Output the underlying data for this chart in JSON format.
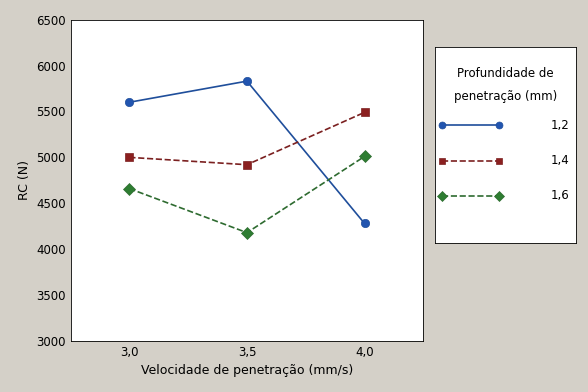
{
  "x_values": [
    3.0,
    3.5,
    4.0
  ],
  "series": [
    {
      "label": "1,2",
      "values": [
        5600,
        5830,
        4280
      ],
      "color": "#1F4E9B",
      "linestyle": "-",
      "marker": "o",
      "markerfacecolor": "#2255B0"
    },
    {
      "label": "1,4",
      "values": [
        5000,
        4920,
        5490
      ],
      "color": "#7B2020",
      "linestyle": "--",
      "marker": "s",
      "markerfacecolor": "#8B2020"
    },
    {
      "label": "1,6",
      "values": [
        4660,
        4180,
        5010
      ],
      "color": "#2E6B30",
      "linestyle": "--",
      "marker": "D",
      "markerfacecolor": "#2E7D32"
    }
  ],
  "xlabel": "Velocidade de penetração (mm/s)",
  "ylabel": "RC (N)",
  "ylim": [
    3000,
    6500
  ],
  "yticks": [
    3000,
    3500,
    4000,
    4500,
    5000,
    5500,
    6000,
    6500
  ],
  "xticks": [
    3.0,
    3.5,
    4.0
  ],
  "xtick_labels": [
    "3,0",
    "3,5",
    "4,0"
  ],
  "legend_title_line1": "Profundidade de",
  "legend_title_line2": "penetração (mm)",
  "background_color": "#d4d0c8",
  "plot_bg_color": "#ffffff",
  "axis_fontsize": 9,
  "tick_fontsize": 8.5,
  "legend_fontsize": 8.5,
  "marker_size": 6,
  "linewidth": 1.2,
  "xlim": [
    2.75,
    4.25
  ]
}
